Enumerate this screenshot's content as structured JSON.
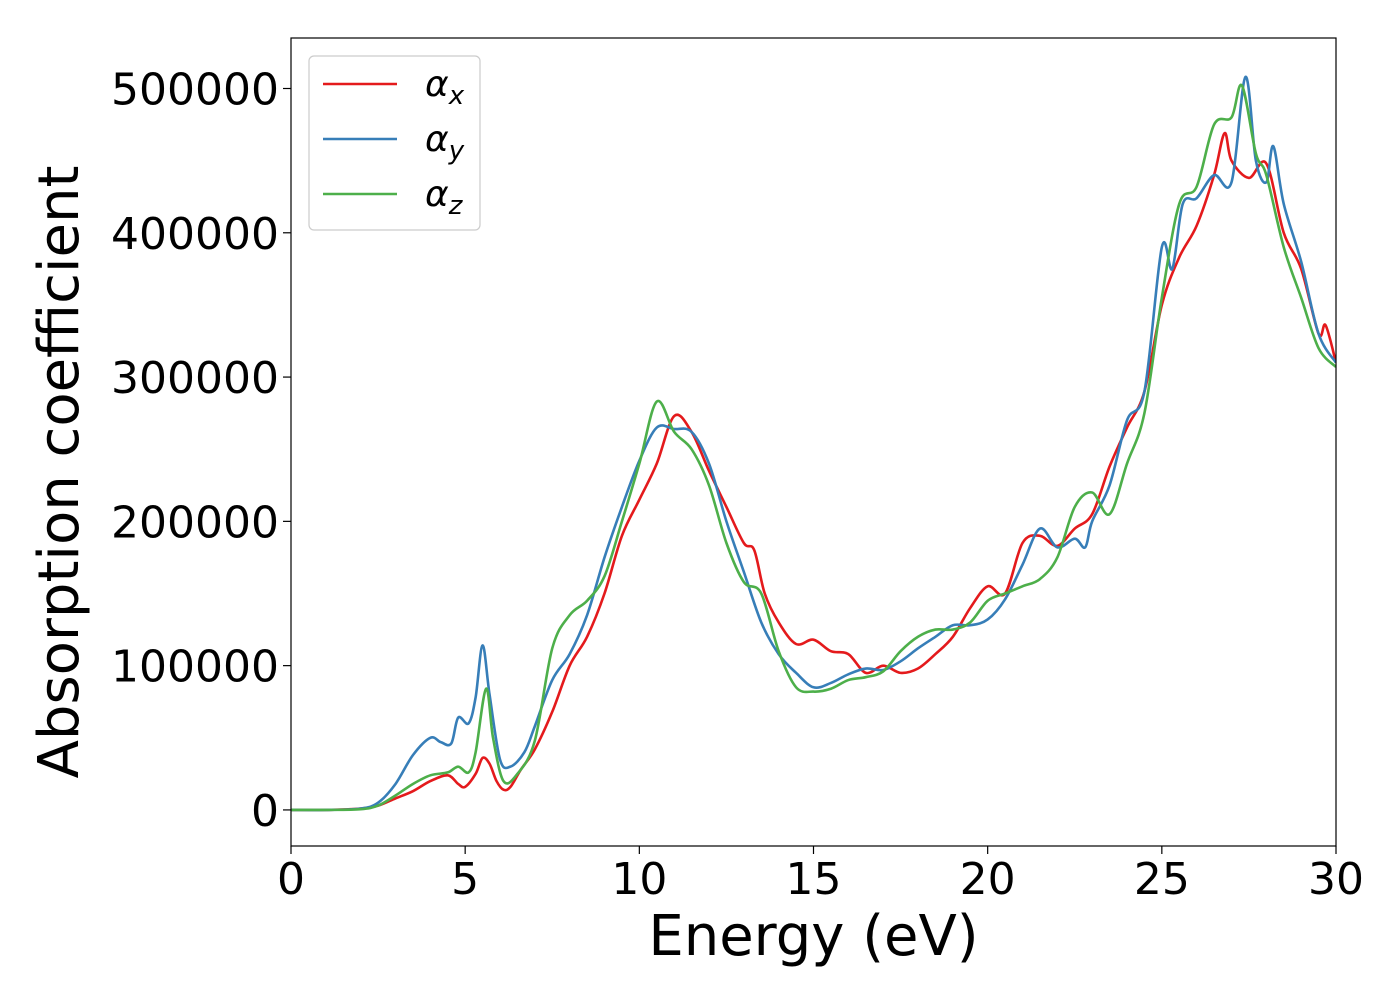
{
  "chart_data": {
    "type": "line",
    "title": "",
    "xlabel": "Energy (eV)",
    "ylabel": "Absorption coefficient",
    "xlim": [
      0,
      30
    ],
    "ylim": [
      -25000,
      535000
    ],
    "xticks": [
      0,
      5,
      10,
      15,
      20,
      25,
      30
    ],
    "xtick_labels": [
      "0",
      "5",
      "10",
      "15",
      "20",
      "25",
      "30"
    ],
    "yticks": [
      0,
      100000,
      200000,
      300000,
      400000,
      500000
    ],
    "ytick_labels": [
      "0",
      "100000",
      "200000",
      "300000",
      "400000",
      "500000"
    ],
    "grid": false,
    "legend_position": "top-left",
    "series": [
      {
        "name": "α",
        "subscript": "x",
        "color": "#e41a1c",
        "points": [
          [
            0,
            0
          ],
          [
            1,
            0
          ],
          [
            2,
            1000
          ],
          [
            2.5,
            3000
          ],
          [
            3,
            8000
          ],
          [
            3.5,
            13000
          ],
          [
            4,
            20000
          ],
          [
            4.5,
            24000
          ],
          [
            4.8,
            18000
          ],
          [
            5,
            16000
          ],
          [
            5.3,
            25000
          ],
          [
            5.5,
            36000
          ],
          [
            5.7,
            32000
          ],
          [
            5.9,
            20000
          ],
          [
            6.1,
            14000
          ],
          [
            6.3,
            16000
          ],
          [
            6.6,
            28000
          ],
          [
            7,
            42000
          ],
          [
            7.5,
            68000
          ],
          [
            8,
            100000
          ],
          [
            8.5,
            120000
          ],
          [
            9,
            150000
          ],
          [
            9.5,
            190000
          ],
          [
            10,
            215000
          ],
          [
            10.5,
            240000
          ],
          [
            11,
            273000
          ],
          [
            11.5,
            262000
          ],
          [
            12,
            235000
          ],
          [
            12.5,
            210000
          ],
          [
            13,
            185000
          ],
          [
            13.3,
            180000
          ],
          [
            13.6,
            150000
          ],
          [
            14,
            130000
          ],
          [
            14.5,
            115000
          ],
          [
            15,
            118000
          ],
          [
            15.5,
            110000
          ],
          [
            16,
            108000
          ],
          [
            16.5,
            95000
          ],
          [
            17,
            100000
          ],
          [
            17.5,
            95000
          ],
          [
            18,
            98000
          ],
          [
            18.5,
            108000
          ],
          [
            19,
            120000
          ],
          [
            19.5,
            140000
          ],
          [
            20,
            155000
          ],
          [
            20.5,
            150000
          ],
          [
            21,
            185000
          ],
          [
            21.5,
            190000
          ],
          [
            22,
            183000
          ],
          [
            22.5,
            195000
          ],
          [
            23,
            205000
          ],
          [
            23.5,
            238000
          ],
          [
            24,
            265000
          ],
          [
            24.5,
            290000
          ],
          [
            25,
            350000
          ],
          [
            25.5,
            383000
          ],
          [
            26,
            405000
          ],
          [
            26.5,
            440000
          ],
          [
            26.8,
            469000
          ],
          [
            27,
            450000
          ],
          [
            27.5,
            438000
          ],
          [
            28,
            448000
          ],
          [
            28.5,
            400000
          ],
          [
            29,
            375000
          ],
          [
            29.5,
            330000
          ],
          [
            29.7,
            336000
          ],
          [
            30,
            310000
          ]
        ]
      },
      {
        "name": "α",
        "subscript": "y",
        "color": "#377eb8",
        "points": [
          [
            0,
            0
          ],
          [
            1,
            0
          ],
          [
            2,
            1000
          ],
          [
            2.5,
            5000
          ],
          [
            3,
            18000
          ],
          [
            3.5,
            38000
          ],
          [
            4,
            50000
          ],
          [
            4.3,
            47000
          ],
          [
            4.6,
            46000
          ],
          [
            4.8,
            64000
          ],
          [
            5.1,
            60000
          ],
          [
            5.3,
            78000
          ],
          [
            5.5,
            114000
          ],
          [
            5.7,
            80000
          ],
          [
            6,
            35000
          ],
          [
            6.3,
            30000
          ],
          [
            6.7,
            40000
          ],
          [
            7,
            58000
          ],
          [
            7.5,
            90000
          ],
          [
            8,
            108000
          ],
          [
            8.5,
            135000
          ],
          [
            9,
            175000
          ],
          [
            9.5,
            210000
          ],
          [
            10,
            242000
          ],
          [
            10.5,
            265000
          ],
          [
            11,
            264000
          ],
          [
            11.5,
            262000
          ],
          [
            12,
            240000
          ],
          [
            12.5,
            200000
          ],
          [
            13,
            165000
          ],
          [
            13.5,
            130000
          ],
          [
            14,
            108000
          ],
          [
            14.5,
            95000
          ],
          [
            15,
            85000
          ],
          [
            15.5,
            88000
          ],
          [
            16,
            94000
          ],
          [
            16.5,
            98000
          ],
          [
            17,
            97000
          ],
          [
            17.5,
            103000
          ],
          [
            18,
            112000
          ],
          [
            18.5,
            120000
          ],
          [
            19,
            128000
          ],
          [
            19.5,
            128000
          ],
          [
            20,
            132000
          ],
          [
            20.5,
            146000
          ],
          [
            21,
            170000
          ],
          [
            21.5,
            195000
          ],
          [
            22,
            182000
          ],
          [
            22.5,
            188000
          ],
          [
            22.8,
            182000
          ],
          [
            23,
            200000
          ],
          [
            23.5,
            225000
          ],
          [
            24,
            270000
          ],
          [
            24.5,
            290000
          ],
          [
            25,
            390000
          ],
          [
            25.3,
            375000
          ],
          [
            25.6,
            420000
          ],
          [
            26,
            424000
          ],
          [
            26.5,
            440000
          ],
          [
            27,
            435000
          ],
          [
            27.4,
            508000
          ],
          [
            27.7,
            450000
          ],
          [
            28,
            435000
          ],
          [
            28.2,
            460000
          ],
          [
            28.5,
            420000
          ],
          [
            29,
            380000
          ],
          [
            29.5,
            330000
          ],
          [
            30,
            310000
          ]
        ]
      },
      {
        "name": "α",
        "subscript": "z",
        "color": "#4daf4a",
        "points": [
          [
            0,
            0
          ],
          [
            1,
            0
          ],
          [
            2,
            500
          ],
          [
            2.5,
            3000
          ],
          [
            3,
            10000
          ],
          [
            3.5,
            18000
          ],
          [
            4,
            24000
          ],
          [
            4.5,
            26000
          ],
          [
            4.8,
            30000
          ],
          [
            5.1,
            26000
          ],
          [
            5.3,
            40000
          ],
          [
            5.6,
            84000
          ],
          [
            5.8,
            50000
          ],
          [
            6.1,
            20000
          ],
          [
            6.5,
            25000
          ],
          [
            7,
            48000
          ],
          [
            7.5,
            112000
          ],
          [
            8,
            135000
          ],
          [
            8.5,
            145000
          ],
          [
            9,
            162000
          ],
          [
            9.5,
            200000
          ],
          [
            10,
            240000
          ],
          [
            10.5,
            283000
          ],
          [
            11,
            262000
          ],
          [
            11.5,
            250000
          ],
          [
            12,
            225000
          ],
          [
            12.5,
            185000
          ],
          [
            13,
            158000
          ],
          [
            13.5,
            150000
          ],
          [
            14,
            110000
          ],
          [
            14.5,
            85000
          ],
          [
            15,
            82000
          ],
          [
            15.5,
            84000
          ],
          [
            16,
            90000
          ],
          [
            16.5,
            92000
          ],
          [
            17,
            96000
          ],
          [
            17.5,
            110000
          ],
          [
            18,
            120000
          ],
          [
            18.5,
            125000
          ],
          [
            19,
            125000
          ],
          [
            19.5,
            130000
          ],
          [
            20,
            145000
          ],
          [
            20.5,
            150000
          ],
          [
            21,
            155000
          ],
          [
            21.5,
            160000
          ],
          [
            22,
            175000
          ],
          [
            22.5,
            210000
          ],
          [
            23,
            220000
          ],
          [
            23.5,
            205000
          ],
          [
            24,
            240000
          ],
          [
            24.5,
            275000
          ],
          [
            25,
            355000
          ],
          [
            25.5,
            420000
          ],
          [
            26,
            432000
          ],
          [
            26.5,
            475000
          ],
          [
            27,
            480000
          ],
          [
            27.3,
            502000
          ],
          [
            27.7,
            455000
          ],
          [
            28,
            440000
          ],
          [
            28.5,
            390000
          ],
          [
            29,
            355000
          ],
          [
            29.5,
            320000
          ],
          [
            30,
            307000
          ]
        ]
      }
    ]
  }
}
